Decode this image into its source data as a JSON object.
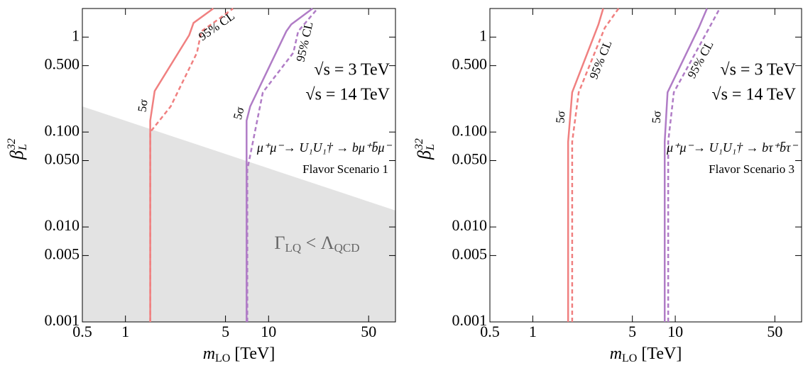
{
  "chart_data": [
    {
      "type": "line",
      "xscale": "log",
      "yscale": "log",
      "xlim": [
        0.5,
        77
      ],
      "ylim": [
        0.001,
        2
      ],
      "xticks": [
        0.5,
        1,
        5,
        10,
        50
      ],
      "yticks": [
        0.001,
        0.005,
        {
          "value": 0.01,
          "label": "0.010"
        },
        {
          "value": 0.05,
          "label": "0.050"
        },
        {
          "value": 0.1,
          "label": "0.100"
        },
        {
          "value": 0.5,
          "label": "0.500"
        },
        1
      ],
      "xlabel": [
        "m",
        "LO",
        " [TeV]"
      ],
      "ylabel": [
        "β",
        "L",
        "32"
      ],
      "series": [
        {
          "name": "5σ",
          "color": "#f08080",
          "dash": false,
          "x": [
            1.49,
            1.49,
            1.6,
            2.79,
            2.99,
            4.11
          ],
          "values": [
            0.001,
            0.132,
            0.27,
            1.05,
            1.41,
            2
          ]
        },
        {
          "name": "95% CL",
          "color": "#f08080",
          "dash": true,
          "x": [
            1.49,
            1.49,
            2.07,
            3.16,
            3.39,
            4.11,
            5.65
          ],
          "values": [
            0.001,
            0.1,
            0.186,
            0.685,
            1.15,
            1.41,
            2
          ]
        },
        {
          "name": "5σ",
          "color": "#b07cc6",
          "dash": false,
          "x": [
            7.02,
            7.02,
            7.44,
            13.3,
            14.4,
            20.3
          ],
          "values": [
            0.001,
            0.132,
            0.186,
            1.15,
            1.36,
            2
          ]
        },
        {
          "name": "95% CL",
          "color": "#b07cc6",
          "dash": true,
          "x": [
            7.1,
            7.1,
            9.12,
            14.9,
            16.1,
            22
          ],
          "values": [
            0.001,
            0.04,
            0.262,
            0.685,
            1.15,
            2
          ]
        }
      ],
      "annotations": [
        {
          "text": "√s = 3 TeV",
          "color": "#e8262a"
        },
        {
          "text": "√s = 14 TeV",
          "color": "#7b1f8e"
        }
      ],
      "process": "μ⁺μ⁻→ U₁U₁† → bμ⁺b̄μ⁻",
      "scenario": "Flavor Scenario 1",
      "region": {
        "label": [
          "Γ",
          "LQ",
          " < Λ",
          "QCD"
        ],
        "color": "#e3e3e3",
        "x": [
          0.5,
          77
        ],
        "y": [
          0.186,
          0.0149
        ]
      }
    },
    {
      "type": "line",
      "xscale": "log",
      "yscale": "log",
      "xlim": [
        0.5,
        77
      ],
      "ylim": [
        0.001,
        2
      ],
      "xticks": [
        0.5,
        1,
        5,
        10,
        50
      ],
      "yticks": [
        0.001,
        0.005,
        {
          "value": 0.01,
          "label": "0.010"
        },
        {
          "value": 0.05,
          "label": "0.050"
        },
        {
          "value": 0.1,
          "label": "0.100"
        },
        {
          "value": 0.5,
          "label": "0.500"
        },
        1
      ],
      "xlabel": [
        "m",
        "LO",
        " [TeV]"
      ],
      "ylabel": [
        "β",
        "L",
        "32"
      ],
      "series": [
        {
          "name": "5σ",
          "color": "#f08080",
          "dash": false,
          "x": [
            1.77,
            1.77,
            1.89,
            2.89,
            3.12
          ],
          "values": [
            0.001,
            0.0787,
            0.262,
            1.36,
            2
          ]
        },
        {
          "name": "95% CL",
          "color": "#f08080",
          "dash": true,
          "x": [
            1.89,
            1.89,
            2.1,
            3.2,
            4.0
          ],
          "values": [
            0.001,
            0.0787,
            0.262,
            1.25,
            2
          ]
        },
        {
          "name": "5σ",
          "color": "#b07cc6",
          "dash": false,
          "x": [
            8.43,
            8.43,
            8.83,
            14.6,
            16.7
          ],
          "values": [
            0.001,
            0.0787,
            0.262,
            1.25,
            2
          ]
        },
        {
          "name": "95% CL",
          "color": "#b07cc6",
          "dash": true,
          "x": [
            8.92,
            8.92,
            9.77,
            17.3,
            20.5
          ],
          "values": [
            0.001,
            0.0787,
            0.262,
            1.25,
            2
          ]
        }
      ],
      "annotations": [
        {
          "text": "√s = 3 TeV",
          "color": "#e8262a"
        },
        {
          "text": "√s = 14 TeV",
          "color": "#7b1f8e"
        }
      ],
      "process": "μ⁺μ⁻→ U₁U₁† → bτ⁺b̄τ⁻",
      "scenario": "Flavor Scenario 3"
    }
  ]
}
